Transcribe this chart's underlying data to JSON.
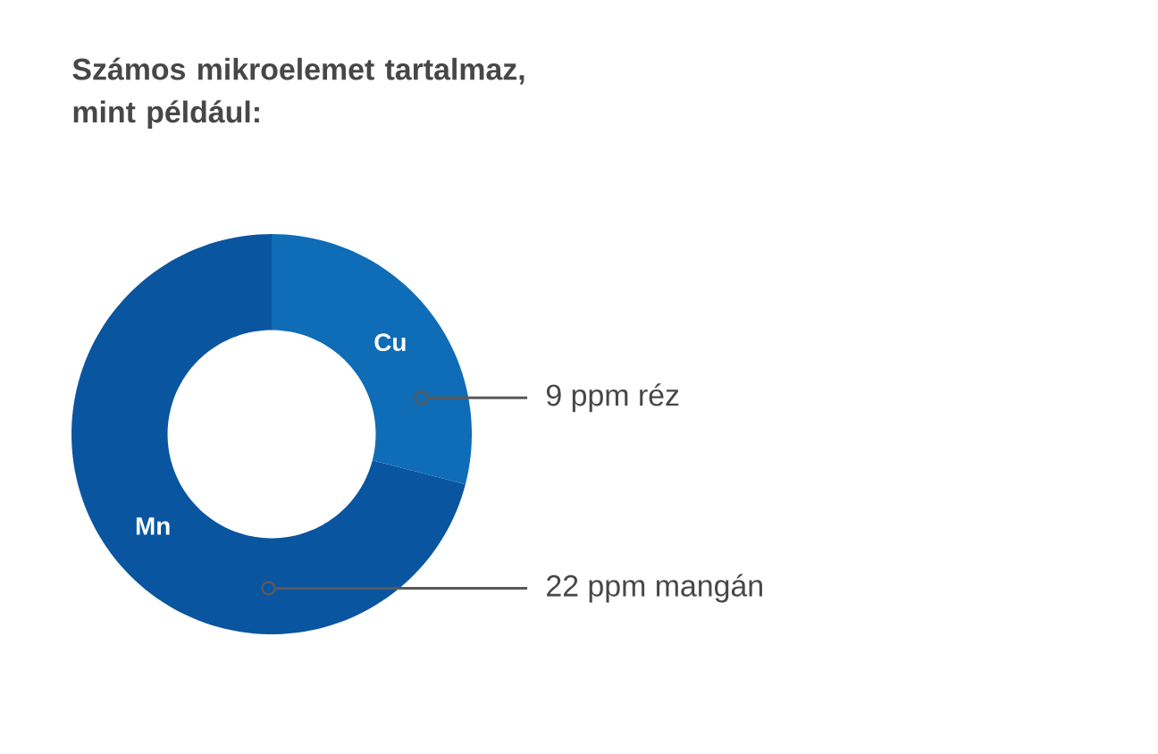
{
  "chart_data": {
    "type": "donut",
    "title": "Számos mikroelemet tartalmaz, mint például:",
    "categories": [
      "Cu",
      "Mn"
    ],
    "values": [
      9,
      22
    ],
    "colors": [
      "#0f6cb6",
      "#0a559f"
    ],
    "value_labels": [
      "9 ppm réz",
      "22 ppm mangán"
    ]
  }
}
